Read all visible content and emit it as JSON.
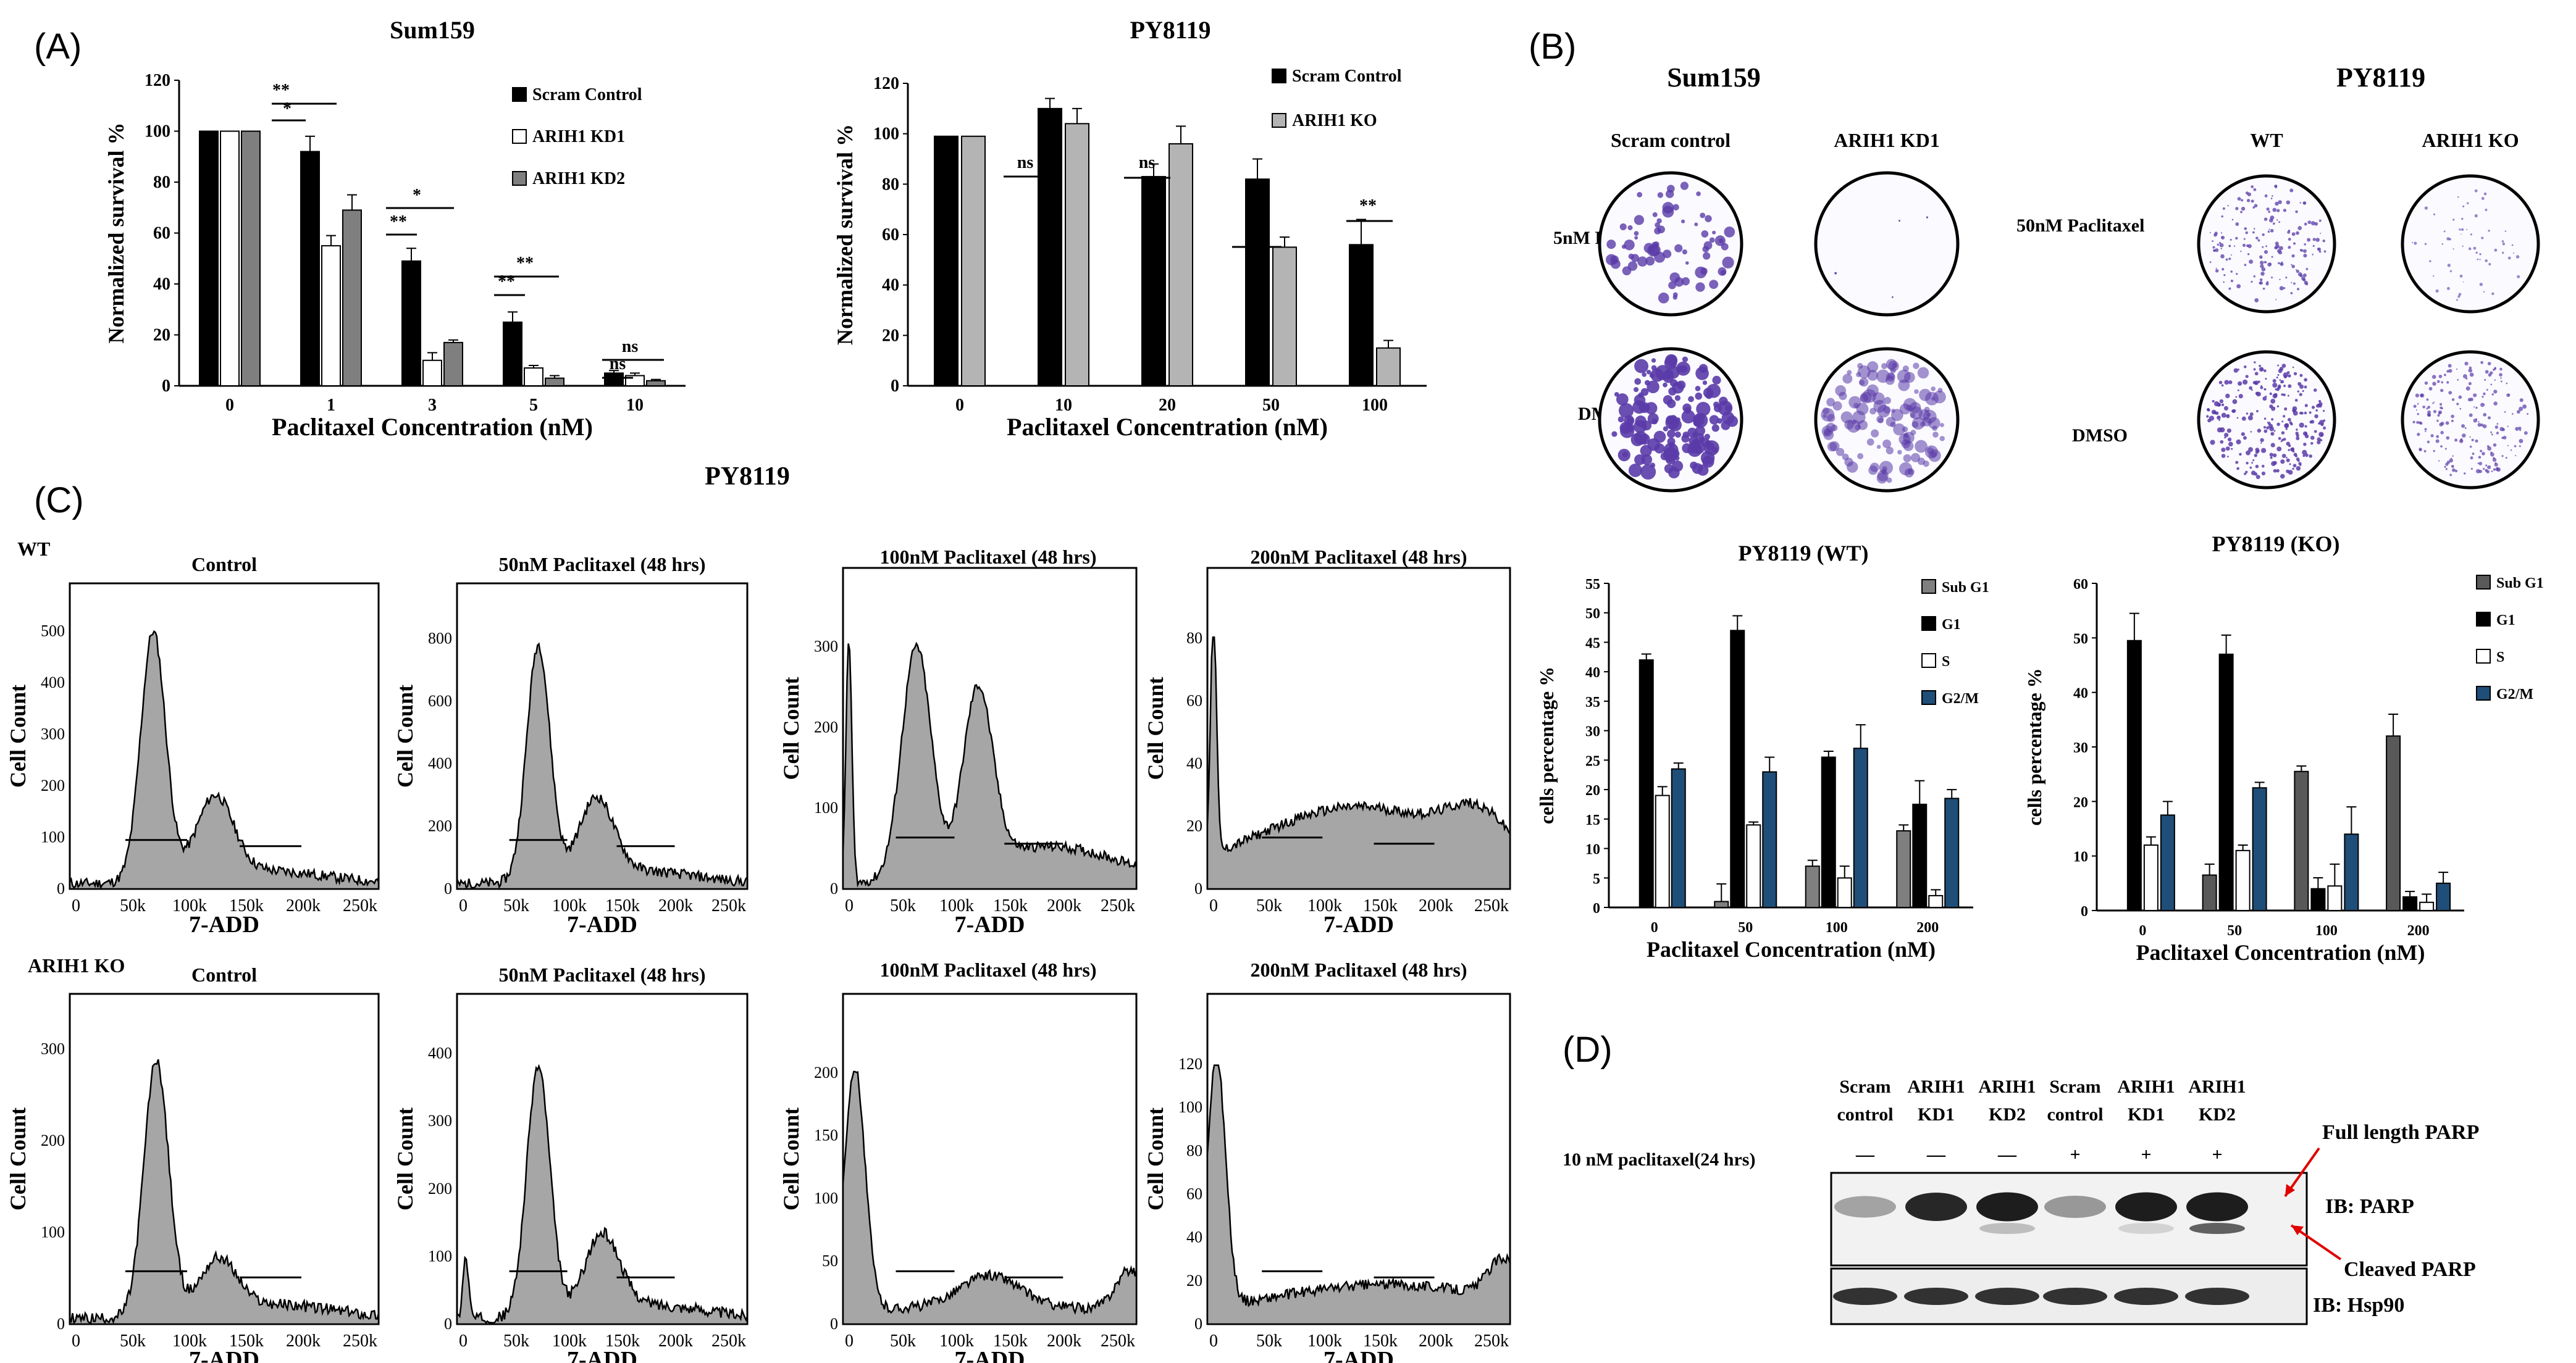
{
  "panels": {
    "a": "(A)",
    "b": "(B)",
    "c": "(C)",
    "d": "(D)"
  },
  "colors": {
    "black": "#000000",
    "white": "#ffffff",
    "gray": "#7f7f7f",
    "lightgray": "#b4b4b4",
    "blue": "#1f4e79",
    "darkgray": "#595959",
    "purple": "#5a3ba8",
    "hist_fill": "#a6a6a6"
  },
  "bar_charts": [
    {
      "name": "sum159-survival",
      "type": "bar",
      "title": "Sum159",
      "ylabel": "Normalized survival %",
      "xlabel": "Paclitaxel Concentration (nM)",
      "ylim": [
        0,
        120
      ],
      "yticks": [
        0,
        20,
        40,
        60,
        80,
        100,
        120
      ],
      "categories": [
        "0",
        "1",
        "3",
        "5",
        "10"
      ],
      "legend_position": "right",
      "series": [
        {
          "name": "Scram Control",
          "color": "#000000",
          "values": [
            100,
            92,
            49,
            25,
            5
          ],
          "errors": [
            0,
            6,
            5,
            4,
            1
          ]
        },
        {
          "name": "ARIH1 KD1",
          "color": "#ffffff",
          "values": [
            100,
            55,
            10,
            7,
            4
          ],
          "errors": [
            0,
            4,
            3,
            1,
            1
          ]
        },
        {
          "name": "ARIH1 KD2",
          "color": "#7f7f7f",
          "values": [
            100,
            69,
            17,
            3,
            2
          ],
          "errors": [
            0,
            6,
            1,
            1,
            0.5
          ]
        }
      ],
      "annotations": [
        "**",
        "*",
        "*",
        "**",
        "**",
        "**",
        "ns",
        "ns"
      ]
    },
    {
      "name": "py8119-survival",
      "type": "bar",
      "title": "PY8119",
      "ylabel": "Normalized survival %",
      "xlabel": "Paclitaxel Concentration (nM)",
      "ylim": [
        0,
        120
      ],
      "yticks": [
        0,
        20,
        40,
        60,
        80,
        100,
        120
      ],
      "categories": [
        "0",
        "10",
        "20",
        "50",
        "100"
      ],
      "legend_position": "right",
      "series": [
        {
          "name": "Scram Control",
          "color": "#000000",
          "values": [
            99,
            110,
            83,
            82,
            56
          ],
          "errors": [
            0,
            4,
            5,
            8,
            10
          ]
        },
        {
          "name": "ARIH1 KO",
          "color": "#b4b4b4",
          "values": [
            99,
            104,
            96,
            55,
            15
          ],
          "errors": [
            0,
            6,
            7,
            4,
            3
          ]
        }
      ],
      "annotations": [
        "ns",
        "ns",
        "*",
        "**"
      ]
    },
    {
      "name": "py8119-wt-cycle",
      "type": "bar",
      "title": "PY8119 (WT)",
      "ylabel": "cells percentage %",
      "xlabel": "Paclitaxel Concentration (nM)",
      "ylim": [
        0,
        55
      ],
      "yticks": [
        0,
        5,
        10,
        15,
        20,
        25,
        30,
        35,
        40,
        45,
        50,
        55
      ],
      "categories": [
        "0",
        "50",
        "100",
        "200"
      ],
      "legend_position": "right",
      "series": [
        {
          "name": "Sub G1",
          "color": "#7f7f7f",
          "values": [
            0,
            1,
            7,
            13
          ],
          "errors": [
            0,
            3,
            1,
            1
          ]
        },
        {
          "name": "G1",
          "color": "#000000",
          "values": [
            42,
            47,
            25.5,
            17.5
          ],
          "errors": [
            1,
            2.5,
            1,
            4
          ]
        },
        {
          "name": "S",
          "color": "#ffffff",
          "values": [
            19,
            14,
            5,
            2
          ],
          "errors": [
            1.5,
            0.5,
            2,
            1
          ]
        },
        {
          "name": "G2/M",
          "color": "#1f4e79",
          "values": [
            23.5,
            23,
            27,
            18.5
          ],
          "errors": [
            1,
            2.5,
            4,
            1.5
          ]
        }
      ]
    },
    {
      "name": "py8119-ko-cycle",
      "type": "bar",
      "title": "PY8119 (KO)",
      "ylabel": "cells percentage %",
      "xlabel": "Paclitaxel Concentration (nM)",
      "ylim": [
        0,
        60
      ],
      "yticks": [
        0,
        10,
        20,
        30,
        40,
        50,
        60
      ],
      "categories": [
        "0",
        "50",
        "100",
        "200"
      ],
      "legend_position": "right",
      "series": [
        {
          "name": "Sub G1",
          "color": "#595959",
          "values": [
            0,
            6.5,
            25.5,
            32
          ],
          "errors": [
            0,
            2,
            1,
            4
          ]
        },
        {
          "name": "G1",
          "color": "#000000",
          "values": [
            49.5,
            47,
            4,
            2.5
          ],
          "errors": [
            5,
            3.5,
            2,
            1
          ]
        },
        {
          "name": "S",
          "color": "#ffffff",
          "values": [
            12,
            11,
            4.5,
            1.5
          ],
          "errors": [
            1.5,
            1,
            4,
            1.5
          ]
        },
        {
          "name": "G2/M",
          "color": "#1f4e79",
          "values": [
            17.5,
            22.5,
            14,
            5
          ],
          "errors": [
            2.5,
            1,
            5,
            2
          ]
        }
      ]
    }
  ],
  "panel_b": {
    "sum159_title": "Sum159",
    "py8119_title": "PY8119",
    "sum159_cols": [
      "Scram control",
      "ARIH1 KD1"
    ],
    "py8119_cols": [
      "WT",
      "ARIH1 KO"
    ],
    "sum159_rows": [
      "5nM Paclitaxel",
      "DMSO"
    ],
    "py8119_rows": [
      "50nM Paclitaxel",
      "DMSO"
    ]
  },
  "panel_c": {
    "title": "PY8119",
    "row_labels": [
      "WT",
      "ARIH1 KO"
    ],
    "ylabel": "Cell Count",
    "xlabel": "7-ADD",
    "hist_titles": [
      "Control",
      "50nM Paclitaxel (48 hrs)",
      "100nM Paclitaxel (48 hrs)",
      "200nM Paclitaxel (48 hrs)"
    ],
    "xticks": [
      "0",
      "50k",
      "100k",
      "150k",
      "200k",
      "250k"
    ],
    "yticks": [
      [
        "0",
        "100",
        "200",
        "300",
        "400",
        "500"
      ],
      [
        "0",
        "200",
        "400",
        "600",
        "800"
      ],
      [
        "0",
        "100",
        "200",
        "300"
      ],
      [
        "0",
        "20",
        "40",
        "60",
        "80"
      ],
      [
        "0",
        "100",
        "200",
        "300"
      ],
      [
        "0",
        "100",
        "200",
        "300",
        "400"
      ],
      [
        "0",
        "50",
        "100",
        "150",
        "200"
      ],
      [
        "0",
        "20",
        "40",
        "60",
        "80",
        "100",
        "120"
      ]
    ]
  },
  "panel_d": {
    "lanes": [
      [
        "Scram",
        "control"
      ],
      [
        "ARIH1",
        "KD1"
      ],
      [
        "ARIH1",
        "KD2"
      ],
      [
        "Scram",
        "control"
      ],
      [
        "ARIH1",
        "KD1"
      ],
      [
        "ARIH1",
        "KD2"
      ]
    ],
    "treatment_label": "10 nM paclitaxel(24 hrs)",
    "treatment": [
      "—",
      "—",
      "—",
      "+",
      "+",
      "+"
    ],
    "full_length": "Full length PARP",
    "cleaved": "Cleaved PARP",
    "ib_parp": "IB: PARP",
    "ib_hsp90": "IB: Hsp90"
  }
}
